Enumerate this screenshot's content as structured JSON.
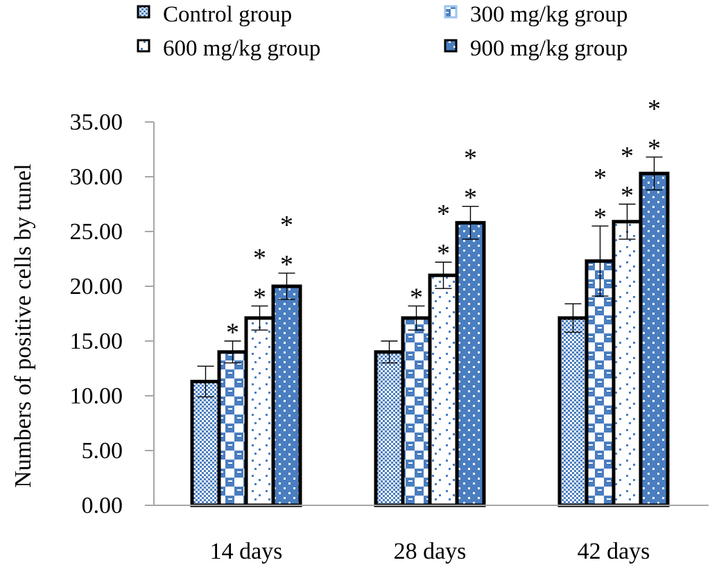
{
  "chart_data": {
    "type": "bar",
    "title": "",
    "xlabel": "",
    "ylabel": "Numbers of positive cells by tunel",
    "ylim": [
      0,
      35
    ],
    "y_ticks": [
      0,
      5,
      10,
      15,
      20,
      25,
      30,
      35
    ],
    "y_tick_labels": [
      "0.00",
      "5.00",
      "10.00",
      "15.00",
      "20.00",
      "25.00",
      "30.00",
      "35.00"
    ],
    "categories": [
      "14 days",
      "28 days",
      "42 days"
    ],
    "grid": false,
    "legend_position": "top",
    "fill_color": "#4a7ec0",
    "series": [
      {
        "name": "Control group",
        "pattern": "fine-checker",
        "values": [
          11.3,
          14.0,
          17.1
        ],
        "errors": [
          1.4,
          1.0,
          1.3
        ],
        "stars": [
          0,
          0,
          0
        ]
      },
      {
        "name": "300 mg/kg group",
        "pattern": "large-checker",
        "values": [
          14.0,
          17.1,
          22.3
        ],
        "errors": [
          1.0,
          1.1,
          3.2
        ],
        "stars": [
          1,
          1,
          2
        ]
      },
      {
        "name": "600 mg/kg group",
        "pattern": "sparse-dots",
        "values": [
          17.1,
          21.0,
          25.9
        ],
        "errors": [
          1.1,
          1.2,
          1.6
        ],
        "stars": [
          2,
          2,
          2
        ]
      },
      {
        "name": "900 mg/kg group",
        "pattern": "white-dots",
        "values": [
          20.0,
          25.8,
          30.3
        ],
        "errors": [
          1.2,
          1.5,
          1.5
        ],
        "stars": [
          2,
          2,
          2
        ]
      }
    ],
    "significance_marker": "*"
  },
  "legend": {
    "items": [
      {
        "label": "Control group"
      },
      {
        "label": "300 mg/kg group"
      },
      {
        "label": "600 mg/kg group"
      },
      {
        "label": "900 mg/kg group"
      }
    ]
  }
}
